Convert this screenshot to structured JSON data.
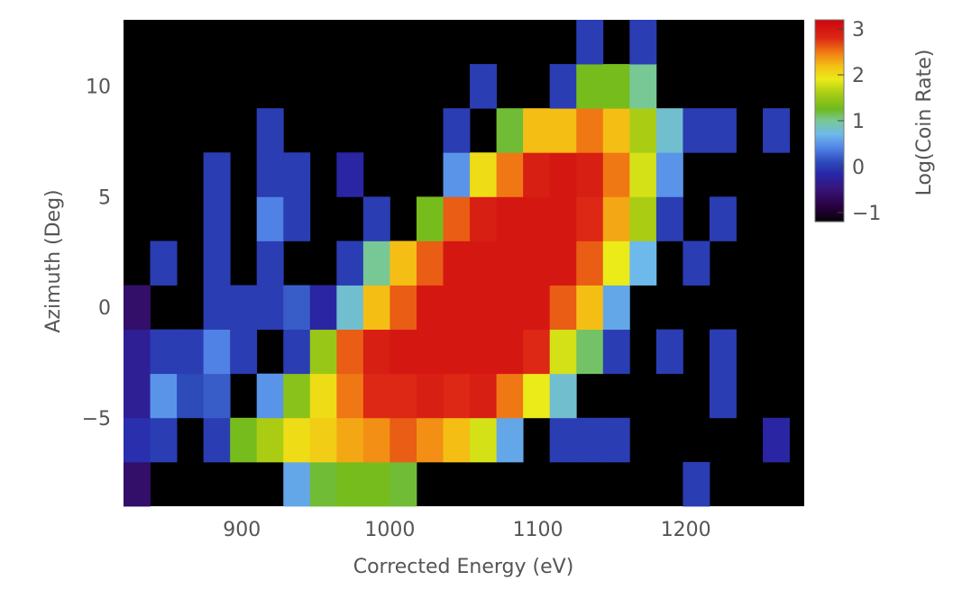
{
  "chart_data": {
    "type": "heatmap",
    "xlabel": "Corrected Energy (eV)",
    "ylabel": "Azimuth (Deg)",
    "colorbar_label": "Log(Coin Rate)",
    "xlim": [
      820,
      1280
    ],
    "ylim": [
      -9,
      13
    ],
    "x_ticks": [
      900,
      1000,
      1100,
      1200
    ],
    "y_ticks": [
      -5,
      0,
      5,
      10
    ],
    "colorbar_ticks": [
      -1,
      0,
      1,
      2,
      3
    ],
    "colorbar_range": [
      -1.2,
      3.2
    ],
    "grid": false,
    "background_color": "#000000",
    "x_bin_centers": [
      829,
      847,
      865,
      883,
      901,
      919,
      937,
      955,
      973,
      991,
      1009,
      1027,
      1045,
      1063,
      1081,
      1099,
      1117,
      1135,
      1153,
      1171,
      1189,
      1207,
      1225,
      1243,
      1261
    ],
    "x_bin_width": 18,
    "y_bin_centers": [
      -8,
      -6,
      -4,
      -2,
      0,
      2,
      4,
      6,
      8,
      10,
      12
    ],
    "y_bin_height": 2,
    "cells": [
      [
        829,
        -8,
        -0.6
      ],
      [
        937,
        -8,
        0.6
      ],
      [
        955,
        -8,
        1.2
      ],
      [
        973,
        -8,
        1.3
      ],
      [
        991,
        -8,
        1.3
      ],
      [
        1009,
        -8,
        1.2
      ],
      [
        1207,
        -8,
        0.0
      ],
      [
        829,
        -6,
        -0.1
      ],
      [
        847,
        -6,
        0.0
      ],
      [
        883,
        -6,
        0.0
      ],
      [
        901,
        -6,
        1.3
      ],
      [
        919,
        -6,
        1.6
      ],
      [
        937,
        -6,
        2.0
      ],
      [
        955,
        -6,
        2.1
      ],
      [
        973,
        -6,
        2.3
      ],
      [
        991,
        -6,
        2.4
      ],
      [
        1009,
        -6,
        2.6
      ],
      [
        1027,
        -6,
        2.4
      ],
      [
        1045,
        -6,
        2.2
      ],
      [
        1063,
        -6,
        1.8
      ],
      [
        1081,
        -6,
        0.6
      ],
      [
        1117,
        -6,
        0.0
      ],
      [
        1135,
        -6,
        0.0
      ],
      [
        1153,
        -6,
        0.0
      ],
      [
        1261,
        -6,
        -0.2
      ],
      [
        829,
        -4,
        -0.3
      ],
      [
        847,
        -4,
        0.5
      ],
      [
        865,
        -4,
        0.1
      ],
      [
        883,
        -4,
        0.2
      ],
      [
        919,
        -4,
        0.5
      ],
      [
        937,
        -4,
        1.4
      ],
      [
        955,
        -4,
        2.0
      ],
      [
        973,
        -4,
        2.5
      ],
      [
        991,
        -4,
        2.8
      ],
      [
        1009,
        -4,
        2.8
      ],
      [
        1027,
        -4,
        2.9
      ],
      [
        1045,
        -4,
        2.8
      ],
      [
        1063,
        -4,
        2.9
      ],
      [
        1081,
        -4,
        2.5
      ],
      [
        1099,
        -4,
        1.9
      ],
      [
        1117,
        -4,
        0.8
      ],
      [
        1225,
        -4,
        0.0
      ],
      [
        829,
        -2,
        -0.3
      ],
      [
        847,
        -2,
        0.0
      ],
      [
        865,
        -2,
        0.0
      ],
      [
        883,
        -2,
        0.4
      ],
      [
        901,
        -2,
        0.0
      ],
      [
        937,
        -2,
        0.0
      ],
      [
        955,
        -2,
        1.5
      ],
      [
        973,
        -2,
        2.6
      ],
      [
        991,
        -2,
        2.9
      ],
      [
        1009,
        -2,
        3.0
      ],
      [
        1027,
        -2,
        3.0
      ],
      [
        1045,
        -2,
        3.0
      ],
      [
        1063,
        -2,
        3.0
      ],
      [
        1081,
        -2,
        3.0
      ],
      [
        1099,
        -2,
        2.8
      ],
      [
        1117,
        -2,
        1.8
      ],
      [
        1135,
        -2,
        1.1
      ],
      [
        1153,
        -2,
        0.0
      ],
      [
        1189,
        -2,
        0.0
      ],
      [
        1225,
        -2,
        0.0
      ],
      [
        829,
        0,
        -0.6
      ],
      [
        883,
        0,
        0.0
      ],
      [
        901,
        0,
        0.0
      ],
      [
        919,
        0,
        0.0
      ],
      [
        937,
        0,
        0.2
      ],
      [
        955,
        0,
        -0.2
      ],
      [
        973,
        0,
        0.8
      ],
      [
        991,
        0,
        2.2
      ],
      [
        1009,
        0,
        2.6
      ],
      [
        1027,
        0,
        3.0
      ],
      [
        1045,
        0,
        3.0
      ],
      [
        1063,
        0,
        3.0
      ],
      [
        1081,
        0,
        3.0
      ],
      [
        1099,
        0,
        3.0
      ],
      [
        1117,
        0,
        2.6
      ],
      [
        1135,
        0,
        2.2
      ],
      [
        1153,
        0,
        0.6
      ],
      [
        847,
        2,
        0.0
      ],
      [
        883,
        2,
        0.0
      ],
      [
        919,
        2,
        0.0
      ],
      [
        973,
        2,
        0.0
      ],
      [
        991,
        2,
        1.0
      ],
      [
        1009,
        2,
        2.2
      ],
      [
        1027,
        2,
        2.6
      ],
      [
        1045,
        2,
        3.0
      ],
      [
        1063,
        2,
        3.0
      ],
      [
        1081,
        2,
        3.0
      ],
      [
        1099,
        2,
        3.0
      ],
      [
        1117,
        2,
        3.0
      ],
      [
        1135,
        2,
        2.6
      ],
      [
        1153,
        2,
        1.9
      ],
      [
        1171,
        2,
        0.7
      ],
      [
        1207,
        2,
        0.0
      ],
      [
        883,
        4,
        0.0
      ],
      [
        919,
        4,
        0.4
      ],
      [
        937,
        4,
        0.0
      ],
      [
        991,
        4,
        0.0
      ],
      [
        1027,
        4,
        1.3
      ],
      [
        1045,
        4,
        2.6
      ],
      [
        1063,
        4,
        2.9
      ],
      [
        1081,
        4,
        3.0
      ],
      [
        1099,
        4,
        3.0
      ],
      [
        1117,
        4,
        3.0
      ],
      [
        1135,
        4,
        2.8
      ],
      [
        1153,
        4,
        2.3
      ],
      [
        1171,
        4,
        1.6
      ],
      [
        1189,
        4,
        0.0
      ],
      [
        1225,
        4,
        0.0
      ],
      [
        883,
        6,
        0.0
      ],
      [
        919,
        6,
        0.0
      ],
      [
        937,
        6,
        0.0
      ],
      [
        973,
        6,
        -0.2
      ],
      [
        1045,
        6,
        0.5
      ],
      [
        1063,
        6,
        2.0
      ],
      [
        1081,
        6,
        2.5
      ],
      [
        1099,
        6,
        2.9
      ],
      [
        1117,
        6,
        3.0
      ],
      [
        1135,
        6,
        2.9
      ],
      [
        1153,
        6,
        2.5
      ],
      [
        1171,
        6,
        1.8
      ],
      [
        1189,
        6,
        0.5
      ],
      [
        919,
        8,
        0.0
      ],
      [
        1045,
        8,
        0.0
      ],
      [
        1081,
        8,
        1.2
      ],
      [
        1099,
        8,
        2.2
      ],
      [
        1117,
        8,
        2.2
      ],
      [
        1135,
        8,
        2.5
      ],
      [
        1153,
        8,
        2.2
      ],
      [
        1171,
        8,
        1.6
      ],
      [
        1189,
        8,
        0.8
      ],
      [
        1207,
        8,
        0.0
      ],
      [
        1225,
        8,
        0.0
      ],
      [
        1261,
        8,
        0.0
      ],
      [
        1063,
        10,
        0.0
      ],
      [
        1117,
        10,
        0.0
      ],
      [
        1135,
        10,
        1.3
      ],
      [
        1153,
        10,
        1.3
      ],
      [
        1171,
        10,
        1.0
      ],
      [
        1135,
        12,
        0.0
      ],
      [
        1171,
        12,
        0.0
      ]
    ]
  }
}
